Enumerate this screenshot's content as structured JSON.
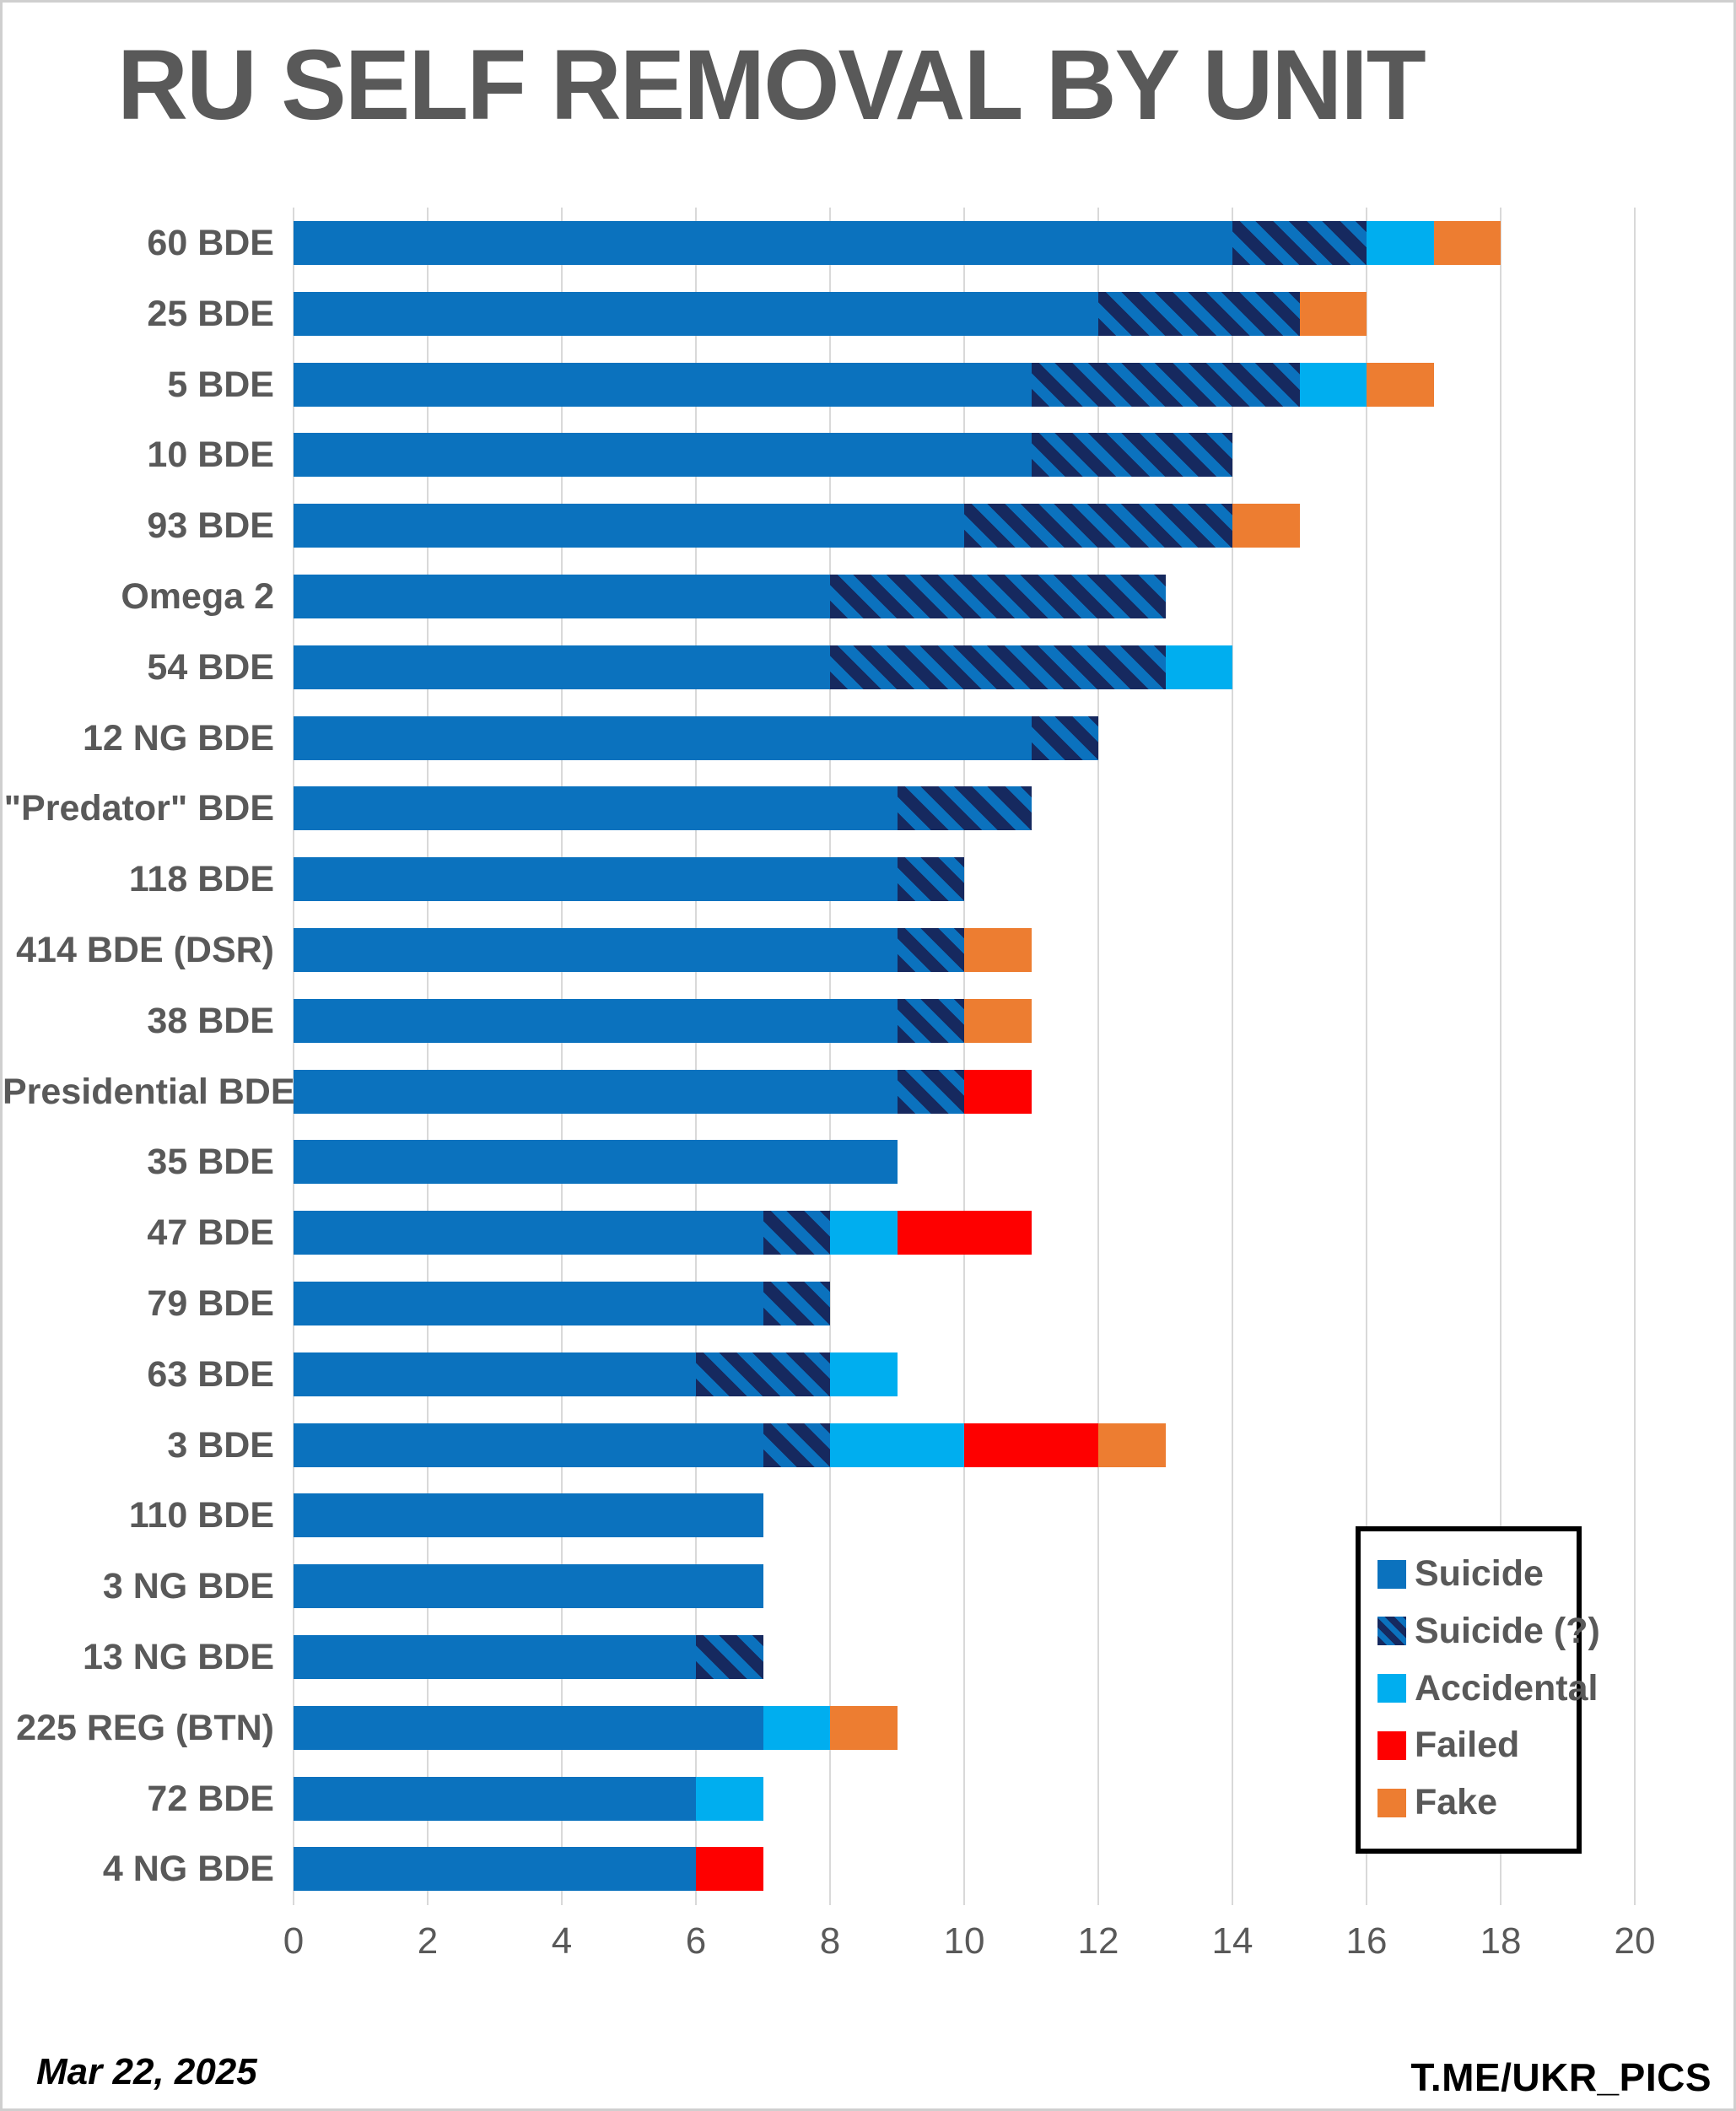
{
  "page": {
    "title": "RU SELF REMOVAL BY UNIT",
    "date_note": "Mar 22, 2025",
    "watermark": "T.ME/UKR_PICS"
  },
  "colors": {
    "suicide_blue": "#0b72be",
    "suicide_q_stripe_navy": "#16295f",
    "accidental_light_blue": "#00aeef",
    "failed_red": "#fe0000",
    "fake_orange": "#ed7d31",
    "title_gray": "#595959",
    "gridline_gray": "#d9d9d9",
    "legend_border_black": "#000000"
  },
  "chart_data": {
    "type": "bar",
    "orientation": "horizontal",
    "stacked": true,
    "title": "RU SELF REMOVAL BY UNIT",
    "xlabel": "",
    "ylabel": "",
    "xlim": [
      0,
      20
    ],
    "x_ticks": [
      0,
      2,
      4,
      6,
      8,
      10,
      12,
      14,
      16,
      18,
      20
    ],
    "grid": true,
    "legend_position": "bottom-right-box",
    "categories": [
      "60 BDE",
      "25 BDE",
      "5 BDE",
      "10 BDE",
      "93 BDE",
      "Omega 2",
      "54 BDE",
      "12 NG BDE",
      "\"Predator\" BDE",
      "118 BDE",
      "414 BDE (DSR)",
      "38 BDE",
      "Presidential BDE",
      "35 BDE",
      "47 BDE",
      "79 BDE",
      "63 BDE",
      "3 BDE",
      "110 BDE",
      "3 NG BDE",
      "13 NG BDE",
      "225 REG (BTN)",
      "72 BDE",
      "4 NG BDE"
    ],
    "series": [
      {
        "name": "Suicide",
        "key": "suicide",
        "pattern": "solid",
        "color": "#0b72be",
        "values": [
          14,
          12,
          11,
          11,
          10,
          8,
          8,
          11,
          9,
          9,
          9,
          9,
          9,
          9,
          7,
          7,
          6,
          7,
          7,
          7,
          6,
          7,
          6,
          6
        ]
      },
      {
        "name": "Suicide (?)",
        "key": "suicide-questionable",
        "pattern": "diagonal-stripes",
        "color": "#0b72be",
        "stripe_color": "#16295f",
        "values": [
          2,
          3,
          4,
          3,
          4,
          5,
          5,
          1,
          2,
          1,
          1,
          1,
          1,
          0,
          1,
          1,
          2,
          1,
          0,
          0,
          1,
          0,
          0,
          0
        ]
      },
      {
        "name": "Accidental",
        "key": "accidental",
        "pattern": "solid",
        "color": "#00aeef",
        "values": [
          1,
          0,
          1,
          0,
          0,
          0,
          1,
          0,
          0,
          0,
          0,
          0,
          0,
          0,
          1,
          0,
          1,
          2,
          0,
          0,
          0,
          1,
          1,
          0
        ]
      },
      {
        "name": "Failed",
        "key": "failed",
        "pattern": "solid",
        "color": "#fe0000",
        "values": [
          0,
          0,
          0,
          0,
          0,
          0,
          0,
          0,
          0,
          0,
          0,
          0,
          1,
          0,
          2,
          0,
          0,
          2,
          0,
          0,
          0,
          0,
          0,
          1
        ]
      },
      {
        "name": "Fake",
        "key": "fake",
        "pattern": "solid",
        "color": "#ed7d31",
        "values": [
          1,
          1,
          1,
          0,
          1,
          0,
          0,
          0,
          0,
          0,
          1,
          1,
          0,
          0,
          0,
          0,
          0,
          1,
          0,
          0,
          0,
          1,
          0,
          0
        ]
      }
    ],
    "totals": [
      18,
      16,
      17,
      14,
      15,
      13,
      14,
      12,
      11,
      10,
      11,
      11,
      11,
      9,
      11,
      8,
      9,
      13,
      7,
      7,
      7,
      9,
      7,
      7
    ]
  }
}
